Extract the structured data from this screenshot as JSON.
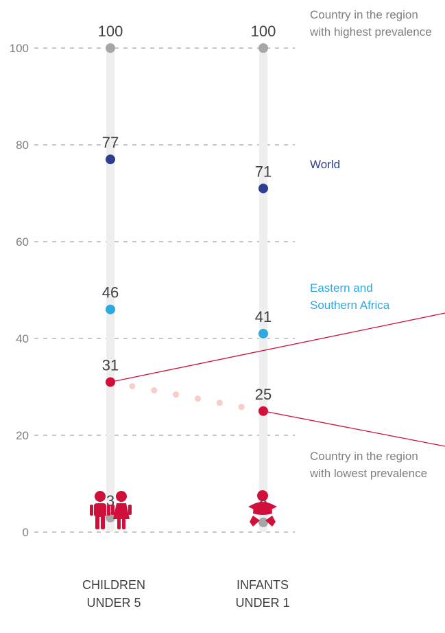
{
  "chart_data": {
    "type": "dot",
    "ylim": [
      0,
      100
    ],
    "yticks": [
      "0",
      "20",
      "40",
      "60",
      "80",
      "100"
    ],
    "categories": [
      {
        "line1": "CHILDREN",
        "line2": "UNDER 5",
        "icon": "children-icon"
      },
      {
        "line1": "INFANTS",
        "line2": "UNDER 1",
        "icon": "infant-icon"
      }
    ],
    "series": [
      {
        "key": "highest",
        "values": [
          100,
          100
        ],
        "color": "#a6a6a6"
      },
      {
        "key": "world",
        "values": [
          77,
          71
        ],
        "color": "#2e3d8f"
      },
      {
        "key": "esa",
        "values": [
          46,
          41
        ],
        "color": "#2ea8e0"
      },
      {
        "key": "country",
        "values": [
          31,
          25
        ],
        "color": "#d0103a",
        "connector": "dotted"
      },
      {
        "key": "lowest",
        "values": [
          3,
          2
        ],
        "color": "#a6a6a6"
      }
    ],
    "annotations": {
      "highest_line1": "Country in the region",
      "highest_line2": "with highest prevalence",
      "world": "World",
      "esa_line1": "Eastern and",
      "esa_line2": "Southern Africa",
      "lowest_line1": "Country in the region",
      "lowest_line2": "with lowest prevalence"
    },
    "colors": {
      "world": "#2e3d8f",
      "esa": "#2ea8e0",
      "country": "#d0103a",
      "region_extremes": "#a6a6a6",
      "annotation_text": "#7f7f7f"
    }
  }
}
